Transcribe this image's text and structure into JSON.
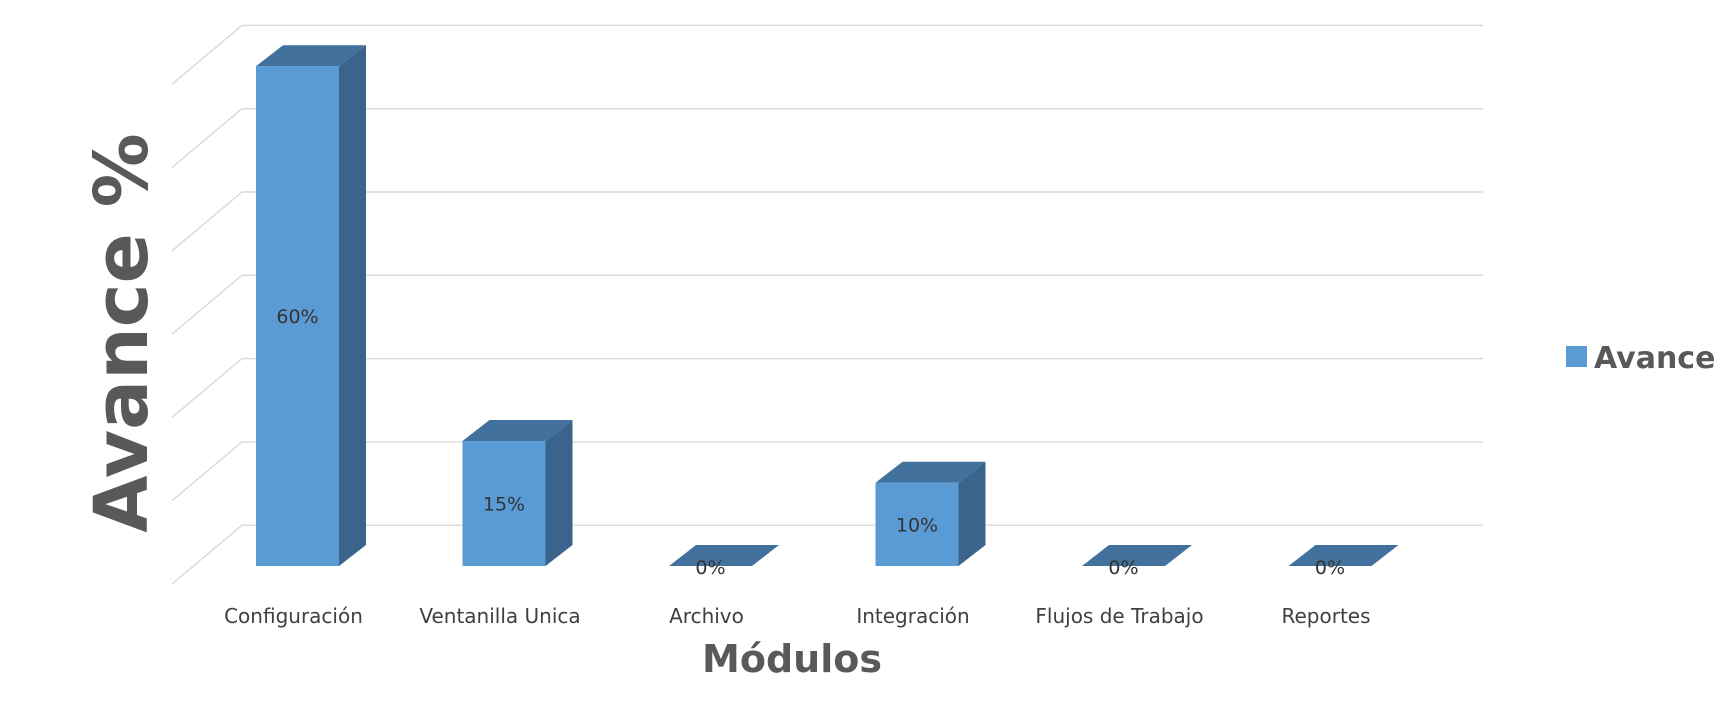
{
  "chart_data": {
    "type": "bar",
    "categories": [
      "Configuración",
      "Ventanilla Unica",
      "Archivo",
      "Integración",
      "Flujos de Trabajo",
      "Reportes"
    ],
    "series": [
      {
        "name": "Avance",
        "values": [
          60,
          15,
          0,
          10,
          0,
          0
        ],
        "labels": [
          "60%",
          "15%",
          "0%",
          "10%",
          "0%",
          "0%"
        ],
        "color": "#5B9BD5"
      }
    ],
    "xlabel": "Módulos",
    "ylabel": "Avance %",
    "ylim": [
      0,
      60
    ],
    "grid": true,
    "legend": "right",
    "three_d": true,
    "colors": {
      "front": "#5B9BD5",
      "top": "#41719C",
      "side": "#3A648C",
      "grid": "#D9D9D9",
      "text": "#404040",
      "title": "#595959"
    }
  }
}
